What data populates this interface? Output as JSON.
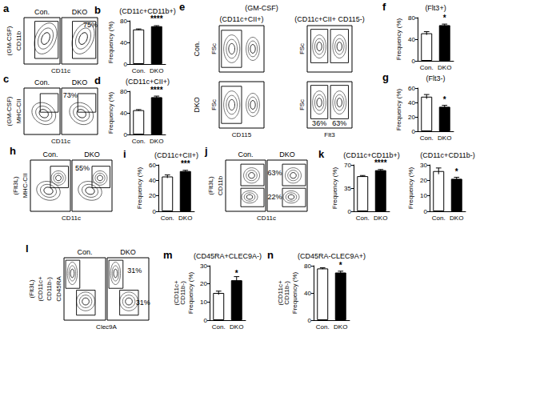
{
  "chart_data": [
    {
      "type": "bar",
      "panel": "b",
      "title": "(CD11c+CD11b+)",
      "y_label": "Frequency (%)",
      "categories": [
        "Con.",
        "DKO"
      ],
      "values": [
        64,
        70
      ],
      "errors": [
        1,
        1
      ],
      "colors": [
        "#ffffff",
        "#000000"
      ],
      "ylim": [
        0,
        80
      ],
      "yticks": [
        0,
        40,
        80
      ],
      "annotation": "****"
    },
    {
      "type": "bar",
      "panel": "d",
      "title": "(CD11c+CII+)",
      "y_label": "Frequency (%)",
      "categories": [
        "Con.",
        "DKO"
      ],
      "values": [
        45,
        69
      ],
      "errors": [
        1,
        2
      ],
      "colors": [
        "#ffffff",
        "#000000"
      ],
      "ylim": [
        0,
        80
      ],
      "yticks": [
        0,
        40,
        80
      ],
      "annotation": "****"
    },
    {
      "type": "bar",
      "panel": "f",
      "title": "(Flt3+)",
      "y_label": "Frequency (%)",
      "categories": [
        "Con.",
        "DKO"
      ],
      "values": [
        51,
        66
      ],
      "errors": [
        3,
        2
      ],
      "colors": [
        "#ffffff",
        "#000000"
      ],
      "ylim": [
        0,
        80
      ],
      "yticks": [
        0,
        40,
        80
      ],
      "annotation": "*"
    },
    {
      "type": "bar",
      "panel": "g",
      "title": "(Flt3-)",
      "y_label": "Frequency (%)",
      "categories": [
        "Con.",
        "DKO"
      ],
      "values": [
        48,
        34
      ],
      "errors": [
        3,
        2
      ],
      "colors": [
        "#ffffff",
        "#000000"
      ],
      "ylim": [
        0,
        60
      ],
      "yticks": [
        0,
        20,
        40,
        60
      ],
      "annotation": "*"
    },
    {
      "type": "bar",
      "panel": "i",
      "title": "(CD11c+CII+)",
      "y_label": "Frequency (%)",
      "categories": [
        "Con.",
        "DKO"
      ],
      "values": [
        45,
        52
      ],
      "errors": [
        2,
        1
      ],
      "colors": [
        "#ffffff",
        "#000000"
      ],
      "ylim": [
        0,
        60
      ],
      "yticks": [
        0,
        20,
        40,
        60
      ],
      "annotation": "***"
    },
    {
      "type": "bar",
      "panel": "k",
      "title": "(CD11c+CD11b+)",
      "y_label": "Frequency (%)",
      "categories": [
        "Con.",
        "DKO"
      ],
      "values": [
        53,
        62
      ],
      "errors": [
        1,
        1
      ],
      "colors": [
        "#ffffff",
        "#000000"
      ],
      "ylim": [
        0,
        70
      ],
      "yticks": [
        0,
        35,
        70
      ],
      "annotation": "****"
    },
    {
      "type": "bar",
      "title": "(CD11c+CD11b-)",
      "y_label": "Frequency (%)",
      "categories": [
        "Con.",
        "DKO"
      ],
      "values": [
        26,
        21
      ],
      "errors": [
        2,
        1
      ],
      "colors": [
        "#ffffff",
        "#000000"
      ],
      "ylim": [
        0,
        30
      ],
      "yticks": [
        0,
        10,
        20,
        30
      ],
      "annotation": "*"
    },
    {
      "type": "bar",
      "panel": "m",
      "title": "(CD45RA+CLEC9A-)",
      "subtitle": [
        "(CD11c+",
        "CD11b-)"
      ],
      "y_label": "Frequency (%)",
      "categories": [
        "Con.",
        "DKO"
      ],
      "values": [
        15,
        22
      ],
      "errors": [
        1,
        2
      ],
      "colors": [
        "#ffffff",
        "#000000"
      ],
      "ylim": [
        0,
        30
      ],
      "yticks": [
        0,
        10,
        20,
        30
      ],
      "annotation": "*"
    },
    {
      "type": "bar",
      "panel": "n",
      "title": "(CD45RA-CLEC9A+)",
      "subtitle": [
        "(CD11c+",
        "CD11b-)"
      ],
      "y_label": "Frequency (%)",
      "categories": [
        "Con.",
        "DKO"
      ],
      "values": [
        76,
        70
      ],
      "errors": [
        1,
        2
      ],
      "colors": [
        "#ffffff",
        "#000000"
      ],
      "ylim": [
        0,
        80
      ],
      "yticks": [
        0,
        40,
        80
      ],
      "annotation": "*"
    }
  ],
  "flow_panels": [
    {
      "panel": "a",
      "condition": [
        "(GM-CSF)"
      ],
      "x_label": "CD11c",
      "y_label": "CD11b",
      "samples": [
        "Con.",
        "DKO"
      ],
      "gate_labels": [
        "75%"
      ]
    },
    {
      "panel": "c",
      "condition": [
        "(GM-CSF)"
      ],
      "x_label": "CD11c",
      "y_label": "MHC-CII",
      "samples": [
        "Con.",
        "DKO"
      ],
      "gate_labels": [
        "73%"
      ]
    },
    {
      "panel": "e",
      "condition": [
        "(GM-CSF)"
      ],
      "samples": [
        "Con.",
        "DKO"
      ],
      "columns": [
        {
          "title": "(CD11c+CII+)",
          "x_label": "CD115",
          "y_label": "FSc",
          "gate_labels": []
        },
        {
          "title": "(CD11c+CII+ CD115-)",
          "x_label": "Flt3",
          "y_label": "FSc",
          "gate_labels": [
            "36%",
            "63%"
          ]
        }
      ]
    },
    {
      "panel": "h",
      "condition": [
        "(Flt3L)"
      ],
      "x_label": "CD11c",
      "y_label": "MHC-CII",
      "samples": [
        "Con.",
        "DKO"
      ],
      "gate_labels": [
        "55%"
      ]
    },
    {
      "panel": "j",
      "condition": [
        "(Flt3L)"
      ],
      "x_label": "CD11c",
      "y_label": "CD11b",
      "samples": [
        "Con.",
        "DKO"
      ],
      "gate_labels": [
        "63%",
        "22%"
      ]
    },
    {
      "panel": "l",
      "condition": [
        "(Flt3L)",
        "(CD11c+",
        "CD11b-)"
      ],
      "x_label": "Clec9A",
      "y_label": "CD45RA",
      "samples": [
        "Con.",
        "DKO"
      ],
      "gate_labels": [
        "31%",
        "31%"
      ]
    }
  ]
}
